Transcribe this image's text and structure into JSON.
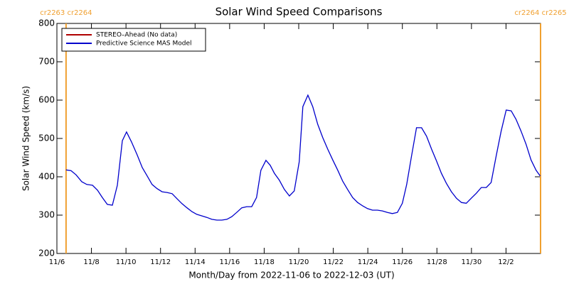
{
  "chart_data": {
    "type": "line",
    "title": "Solar Wind Speed Comparisons",
    "x_label": "Month/Day from 2022-11-06 to 2022-12-03 (UT)",
    "y_label": "Solar Wind Speed (km/s)",
    "xlim": [
      0,
      28
    ],
    "xticks": [
      {
        "value": 0,
        "label": "11/6"
      },
      {
        "value": 2,
        "label": "11/8"
      },
      {
        "value": 4,
        "label": "11/10"
      },
      {
        "value": 6,
        "label": "11/12"
      },
      {
        "value": 8,
        "label": "11/14"
      },
      {
        "value": 10,
        "label": "11/16"
      },
      {
        "value": 12,
        "label": "11/18"
      },
      {
        "value": 14,
        "label": "11/20"
      },
      {
        "value": 16,
        "label": "11/22"
      },
      {
        "value": 18,
        "label": "11/24"
      },
      {
        "value": 20,
        "label": "11/26"
      },
      {
        "value": 22,
        "label": "11/28"
      },
      {
        "value": 24,
        "label": "11/30"
      },
      {
        "value": 26,
        "label": "12/2"
      }
    ],
    "ylim": [
      200,
      800
    ],
    "yticks": [
      200,
      300,
      400,
      500,
      600,
      700,
      800
    ],
    "legend_position": "upper left",
    "no_data_series": {
      "name": "STEREO–Ahead (No data)",
      "color": "#b00000"
    },
    "annotations": [
      {
        "text": "cr2263 cr2264",
        "x": 0.53,
        "color": "#f0a030"
      },
      {
        "text": "cr2264 cr2265",
        "x": 28,
        "color": "#f0a030"
      }
    ],
    "x": [
      0.53,
      0.82,
      1.11,
      1.44,
      1.73,
      2.06,
      2.35,
      2.63,
      2.92,
      3.21,
      3.5,
      3.79,
      4.03,
      4.32,
      4.65,
      4.94,
      5.23,
      5.51,
      5.8,
      6.09,
      6.38,
      6.67,
      6.95,
      7.24,
      7.53,
      7.82,
      8.1,
      8.4,
      8.68,
      8.97,
      9.26,
      9.55,
      9.84,
      10.12,
      10.41,
      10.7,
      10.99,
      11.28,
      11.56,
      11.81,
      12.1,
      12.35,
      12.59,
      12.88,
      13.17,
      13.46,
      13.74,
      14.03,
      14.24,
      14.53,
      14.81,
      15.1,
      15.39,
      15.68,
      15.97,
      16.26,
      16.54,
      16.83,
      17.12,
      17.41,
      17.7,
      17.98,
      18.27,
      18.56,
      18.85,
      19.14,
      19.42,
      19.71,
      20.0,
      20.25,
      20.53,
      20.82,
      21.11,
      21.4,
      21.69,
      21.98,
      22.26,
      22.55,
      22.84,
      23.13,
      23.42,
      23.7,
      23.99,
      24.28,
      24.57,
      24.86,
      25.14,
      25.43,
      25.72,
      26.01,
      26.3,
      26.58,
      26.87,
      27.16,
      27.45,
      27.74,
      27.98
    ],
    "series": [
      {
        "name": "Predictive Science MAS Model",
        "color": "#0000cc",
        "values": [
          418,
          416,
          405,
          387,
          380,
          378,
          365,
          346,
          328,
          326,
          378,
          494,
          517,
          491,
          457,
          424,
          402,
          380,
          369,
          361,
          359,
          356,
          343,
          330,
          319,
          309,
          302,
          298,
          294,
          289,
          287,
          287,
          289,
          296,
          307,
          319,
          322,
          322,
          346,
          417,
          443,
          430,
          409,
          391,
          367,
          350,
          363,
          439,
          583,
          613,
          583,
          537,
          502,
          472,
          444,
          417,
          389,
          367,
          346,
          333,
          324,
          317,
          313,
          313,
          311,
          307,
          304,
          307,
          331,
          380,
          454,
          528,
          528,
          506,
          472,
          441,
          409,
          383,
          361,
          344,
          333,
          331,
          344,
          357,
          372,
          372,
          385,
          454,
          519,
          574,
          572,
          550,
          519,
          485,
          444,
          417,
          402
        ]
      }
    ]
  }
}
